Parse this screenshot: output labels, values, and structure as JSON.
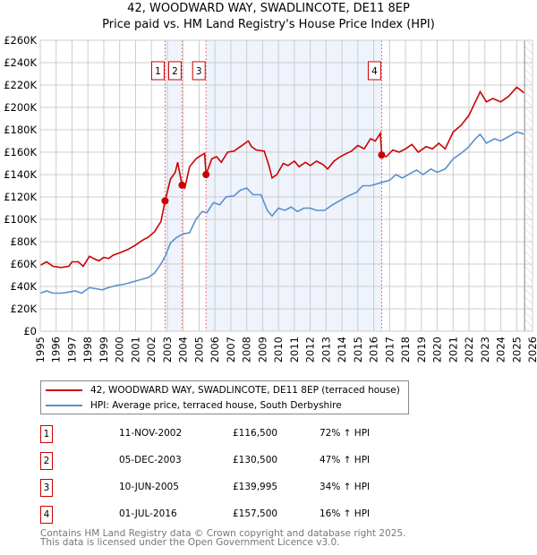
{
  "chart_data": {
    "type": "line",
    "title": "42, WOODWARD WAY, SWADLINCOTE, DE11 8EP",
    "subtitle": "Price paid vs. HM Land Registry's House Price Index (HPI)",
    "xlim": [
      1995,
      2026
    ],
    "ylim": [
      0,
      260000
    ],
    "y_ticks": [
      {
        "v": 0,
        "label": "£0"
      },
      {
        "v": 20,
        "label": "£20K"
      },
      {
        "v": 40,
        "label": "£40K"
      },
      {
        "v": 60,
        "label": "£60K"
      },
      {
        "v": 80,
        "label": "£80K"
      },
      {
        "v": 100,
        "label": "£100K"
      },
      {
        "v": 120,
        "label": "£120K"
      },
      {
        "v": 140,
        "label": "£140K"
      },
      {
        "v": 160,
        "label": "£160K"
      },
      {
        "v": 180,
        "label": "£180K"
      },
      {
        "v": 200,
        "label": "£200K"
      },
      {
        "v": 220,
        "label": "£220K"
      },
      {
        "v": 240,
        "label": "£240K"
      },
      {
        "v": 260,
        "label": "£260K"
      }
    ],
    "x_ticks": [
      "1995",
      "1996",
      "1997",
      "1998",
      "1999",
      "2000",
      "2001",
      "2002",
      "2003",
      "2004",
      "2005",
      "2006",
      "2007",
      "2008",
      "2009",
      "2010",
      "2011",
      "2012",
      "2013",
      "2014",
      "2015",
      "2016",
      "2017",
      "2018",
      "2019",
      "2020",
      "2021",
      "2022",
      "2023",
      "2024",
      "2025",
      "2026"
    ],
    "grid": true,
    "colors": {
      "property": "#cc0000",
      "hpi": "#5b8fd0",
      "shade": "#eef3fc",
      "marker": "#cc0000"
    },
    "forecast_from": 2025.5,
    "series": [
      {
        "name": "42, WOODWARD WAY, SWADLINCOTE, DE11 8EP (terraced house)",
        "unit": "£K",
        "points": [
          [
            1995,
            59
          ],
          [
            1995.4,
            62
          ],
          [
            1995.8,
            58
          ],
          [
            1996.3,
            57
          ],
          [
            1996.8,
            58
          ],
          [
            1997,
            62
          ],
          [
            1997.4,
            62
          ],
          [
            1997.7,
            58
          ],
          [
            1998.1,
            67
          ],
          [
            1998.5,
            64
          ],
          [
            1998.7,
            63
          ],
          [
            1999,
            66
          ],
          [
            1999.3,
            65
          ],
          [
            1999.6,
            68
          ],
          [
            2000,
            70
          ],
          [
            2000.5,
            73
          ],
          [
            2001,
            77
          ],
          [
            2001.4,
            81
          ],
          [
            2001.8,
            84
          ],
          [
            2002.2,
            89
          ],
          [
            2002.6,
            98
          ],
          [
            2002.86,
            116.5
          ],
          [
            2003.2,
            136
          ],
          [
            2003.5,
            142
          ],
          [
            2003.65,
            151
          ],
          [
            2003.93,
            130.5
          ],
          [
            2004.1,
            128
          ],
          [
            2004.4,
            147
          ],
          [
            2004.8,
            154
          ],
          [
            2005.1,
            157
          ],
          [
            2005.35,
            159
          ],
          [
            2005.44,
            140
          ],
          [
            2005.8,
            154
          ],
          [
            2006.1,
            156
          ],
          [
            2006.4,
            151
          ],
          [
            2006.8,
            160
          ],
          [
            2007.2,
            161
          ],
          [
            2007.6,
            165
          ],
          [
            2008.1,
            170
          ],
          [
            2008.3,
            165
          ],
          [
            2008.6,
            162
          ],
          [
            2009.1,
            161
          ],
          [
            2009.4,
            148
          ],
          [
            2009.6,
            137
          ],
          [
            2009.9,
            140
          ],
          [
            2010.3,
            150
          ],
          [
            2010.6,
            148
          ],
          [
            2011,
            152
          ],
          [
            2011.3,
            147
          ],
          [
            2011.7,
            151
          ],
          [
            2012,
            148
          ],
          [
            2012.4,
            152
          ],
          [
            2012.8,
            149
          ],
          [
            2013.1,
            145
          ],
          [
            2013.5,
            152
          ],
          [
            2013.9,
            156
          ],
          [
            2014.3,
            159
          ],
          [
            2014.6,
            161
          ],
          [
            2015,
            166
          ],
          [
            2015.4,
            163
          ],
          [
            2015.8,
            172
          ],
          [
            2016.1,
            170
          ],
          [
            2016.42,
            177
          ],
          [
            2016.5,
            157.5
          ],
          [
            2016.8,
            156
          ],
          [
            2017.2,
            162
          ],
          [
            2017.6,
            160
          ],
          [
            2018,
            163
          ],
          [
            2018.4,
            167
          ],
          [
            2018.8,
            160
          ],
          [
            2019.3,
            165
          ],
          [
            2019.7,
            163
          ],
          [
            2020.1,
            168
          ],
          [
            2020.5,
            163
          ],
          [
            2021,
            178
          ],
          [
            2021.5,
            184
          ],
          [
            2022,
            193
          ],
          [
            2022.4,
            205
          ],
          [
            2022.7,
            214
          ],
          [
            2023.1,
            205
          ],
          [
            2023.5,
            208
          ],
          [
            2024,
            205
          ],
          [
            2024.5,
            210
          ],
          [
            2025,
            218
          ],
          [
            2025.3,
            215
          ],
          [
            2025.45,
            213
          ]
        ]
      },
      {
        "name": "HPI: Average price, terraced house, South Derbyshire",
        "unit": "£K",
        "points": [
          [
            1995,
            34
          ],
          [
            1995.4,
            36
          ],
          [
            1995.8,
            34
          ],
          [
            1996.3,
            34
          ],
          [
            1996.8,
            35
          ],
          [
            1997.2,
            36
          ],
          [
            1997.6,
            34
          ],
          [
            1998.1,
            39
          ],
          [
            1998.5,
            38
          ],
          [
            1998.9,
            37
          ],
          [
            1999.3,
            39
          ],
          [
            1999.8,
            41
          ],
          [
            2000.3,
            42
          ],
          [
            2000.8,
            44
          ],
          [
            2001.3,
            46
          ],
          [
            2001.8,
            48
          ],
          [
            2002.2,
            52
          ],
          [
            2002.6,
            60
          ],
          [
            2002.9,
            68
          ],
          [
            2003.2,
            79
          ],
          [
            2003.6,
            84
          ],
          [
            2004,
            87
          ],
          [
            2004.4,
            88
          ],
          [
            2004.8,
            100
          ],
          [
            2005.2,
            107
          ],
          [
            2005.5,
            106
          ],
          [
            2005.9,
            115
          ],
          [
            2006.3,
            113
          ],
          [
            2006.7,
            120
          ],
          [
            2007.2,
            121
          ],
          [
            2007.6,
            126
          ],
          [
            2008,
            128
          ],
          [
            2008.4,
            122
          ],
          [
            2008.9,
            122
          ],
          [
            2009.3,
            108
          ],
          [
            2009.6,
            103
          ],
          [
            2010,
            110
          ],
          [
            2010.4,
            108
          ],
          [
            2010.8,
            111
          ],
          [
            2011.2,
            107
          ],
          [
            2011.6,
            110
          ],
          [
            2012,
            110
          ],
          [
            2012.4,
            108
          ],
          [
            2012.9,
            108
          ],
          [
            2013.4,
            113
          ],
          [
            2013.9,
            117
          ],
          [
            2014.4,
            121
          ],
          [
            2014.9,
            124
          ],
          [
            2015.3,
            130
          ],
          [
            2015.8,
            130
          ],
          [
            2016.5,
            133
          ],
          [
            2017,
            135
          ],
          [
            2017.4,
            140
          ],
          [
            2017.8,
            137
          ],
          [
            2018.3,
            141
          ],
          [
            2018.7,
            144
          ],
          [
            2019.1,
            140
          ],
          [
            2019.6,
            145
          ],
          [
            2020,
            142
          ],
          [
            2020.5,
            145
          ],
          [
            2021,
            154
          ],
          [
            2021.5,
            159
          ],
          [
            2022,
            165
          ],
          [
            2022.4,
            172
          ],
          [
            2022.7,
            176
          ],
          [
            2023.1,
            168
          ],
          [
            2023.6,
            172
          ],
          [
            2024,
            170
          ],
          [
            2024.5,
            174
          ],
          [
            2025,
            178
          ],
          [
            2025.3,
            177
          ],
          [
            2025.45,
            176
          ]
        ]
      }
    ],
    "sales": [
      {
        "n": "1",
        "year": 2002.86,
        "value": 116.5
      },
      {
        "n": "2",
        "year": 2003.93,
        "value": 130.5
      },
      {
        "n": "3",
        "year": 2005.44,
        "value": 139.995
      },
      {
        "n": "4",
        "year": 2016.5,
        "value": 157.5
      }
    ]
  },
  "legend": {
    "property": "42, WOODWARD WAY, SWADLINCOTE, DE11 8EP (terraced house)",
    "hpi": "HPI: Average price, terraced house, South Derbyshire"
  },
  "transactions": [
    {
      "n": "1",
      "date": "11-NOV-2002",
      "price": "£116,500",
      "hpi": "72% ↑ HPI"
    },
    {
      "n": "2",
      "date": "05-DEC-2003",
      "price": "£130,500",
      "hpi": "47% ↑ HPI"
    },
    {
      "n": "3",
      "date": "10-JUN-2005",
      "price": "£139,995",
      "hpi": "34% ↑ HPI"
    },
    {
      "n": "4",
      "date": "01-JUL-2016",
      "price": "£157,500",
      "hpi": "16% ↑ HPI"
    }
  ],
  "footer": {
    "line1": "Contains HM Land Registry data © Crown copyright and database right 2025.",
    "line2": "This data is licensed under the Open Government Licence v3.0."
  }
}
